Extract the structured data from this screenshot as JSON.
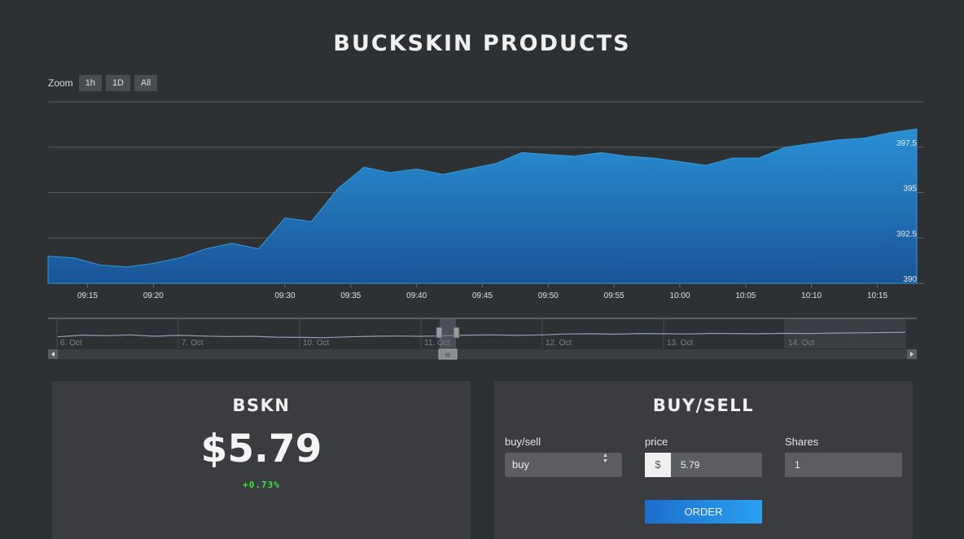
{
  "header": {
    "title": "BUCKSKIN PRODUCTS"
  },
  "zoom": {
    "label": "Zoom",
    "buttons": [
      "1h",
      "1D",
      "All"
    ]
  },
  "colors": {
    "background": "#2e3134",
    "area_top": "#2a8fd4",
    "area_bottom": "#1a5496",
    "positive": "#39e639",
    "order_button": "#2a8fe8"
  },
  "chart_data": {
    "type": "area",
    "x": [
      "09:12",
      "09:14",
      "09:16",
      "09:18",
      "09:20",
      "09:22",
      "09:24",
      "09:26",
      "09:28",
      "09:30",
      "09:32",
      "09:34",
      "09:36",
      "09:38",
      "09:40",
      "09:42",
      "09:44",
      "09:46",
      "09:48",
      "09:50",
      "09:52",
      "09:54",
      "09:56",
      "09:58",
      "10:00",
      "10:02",
      "10:04",
      "10:06",
      "10:08",
      "10:10",
      "10:12",
      "10:14",
      "10:16",
      "10:18"
    ],
    "values": [
      391.5,
      391.4,
      391.0,
      390.9,
      391.1,
      391.4,
      391.9,
      392.2,
      391.9,
      393.6,
      393.4,
      395.2,
      396.4,
      396.1,
      396.3,
      396.0,
      396.3,
      396.6,
      397.2,
      397.1,
      397.0,
      397.2,
      397.0,
      396.9,
      396.7,
      396.5,
      396.9,
      396.9,
      397.5,
      397.7,
      397.9,
      398.0,
      398.3,
      398.5
    ],
    "xticks": [
      "09:15",
      "09:20",
      "09:30",
      "09:35",
      "09:40",
      "09:45",
      "09:50",
      "09:55",
      "10:00",
      "10:05",
      "10:10",
      "10:15"
    ],
    "yticks": [
      "390",
      "392.5",
      "395",
      "397.5"
    ],
    "ylim": [
      390,
      400
    ],
    "grid": true,
    "navigator": {
      "labels": [
        "6. Oct",
        "7. Oct",
        "10. Oct",
        "11. Oct",
        "12. Oct",
        "13. Oct",
        "14. Oct"
      ],
      "values": [
        0.45,
        0.6,
        0.55,
        0.62,
        0.5,
        0.58,
        0.52,
        0.48,
        0.5,
        0.42,
        0.4,
        0.38,
        0.45,
        0.5,
        0.52,
        0.5,
        0.55,
        0.6,
        0.62,
        0.58,
        0.62,
        0.7,
        0.72,
        0.68,
        0.74,
        0.72,
        0.7,
        0.75,
        0.74,
        0.72,
        0.76,
        0.74,
        0.78,
        0.8,
        0.82,
        0.85
      ],
      "grip_label": "III"
    }
  },
  "stock": {
    "ticker": "BSKN",
    "price": "$5.79",
    "change": "+0.73%"
  },
  "order_form": {
    "title": "BUY/SELL",
    "side_label": "buy/sell",
    "side_value": "buy",
    "price_label": "price",
    "currency": "$",
    "price_value": "5.79",
    "shares_label": "Shares",
    "shares_value": "1",
    "order_button": "ORDER"
  }
}
